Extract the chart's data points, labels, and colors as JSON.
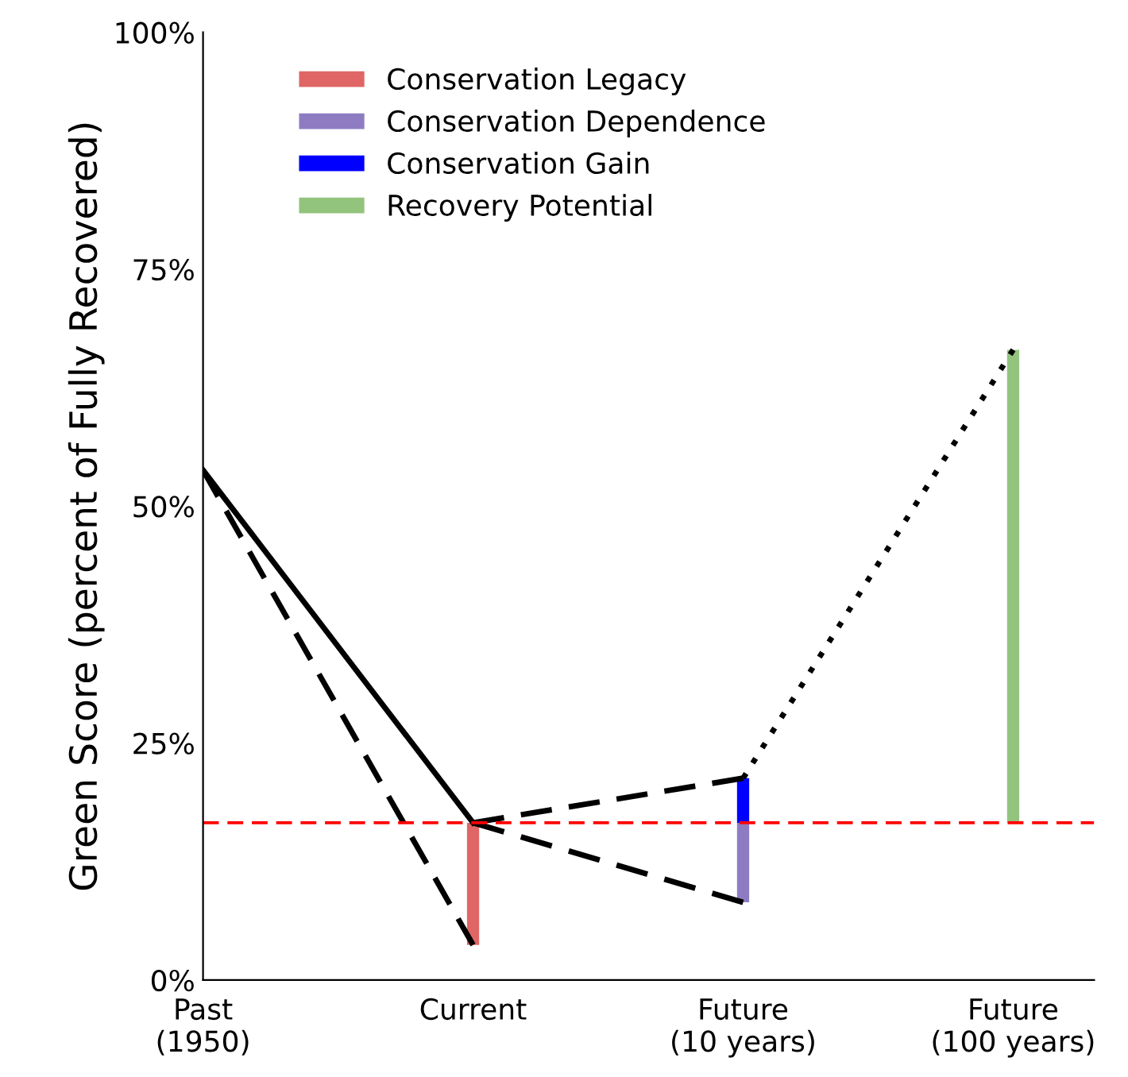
{
  "chart_data": {
    "type": "line",
    "ylabel": "Green Score (percent of Fully Recovered)",
    "categories": [
      "Past\n(1950)",
      "Current",
      "Future\n(10 years)",
      "Future\n(100 years)"
    ],
    "ylim": [
      0,
      100
    ],
    "yticks": [
      {
        "value": 0,
        "label": "0%"
      },
      {
        "value": 25,
        "label": "25%"
      },
      {
        "value": 50,
        "label": "50%"
      },
      {
        "value": 75,
        "label": "75%"
      },
      {
        "value": 100,
        "label": "100%"
      }
    ],
    "grid": false,
    "legend": "top left",
    "series": [
      {
        "color": "#000000",
        "line_style": "solid",
        "values": [
          53.8,
          16.6,
          null,
          null
        ]
      },
      {
        "color": "#000000",
        "line_style": "dashed",
        "values": [
          53.8,
          3.7,
          null,
          null
        ]
      },
      {
        "color": "#000000",
        "line_style": "dashed",
        "values": [
          null,
          16.6,
          21.3,
          null
        ]
      },
      {
        "color": "#000000",
        "line_style": "dashed",
        "values": [
          null,
          16.6,
          8.2,
          null
        ]
      },
      {
        "color": "#000000",
        "line_style": "dotted",
        "values": [
          null,
          null,
          21.3,
          66.5
        ]
      },
      {
        "type": "bar",
        "name": "Conservation Legacy",
        "color": "#e06666",
        "values": [
          null,
          12.9,
          null,
          null
        ],
        "base": [
          null,
          3.7,
          null,
          null
        ]
      },
      {
        "type": "bar",
        "name": "Conservation Dependence",
        "color": "#8e7cc3",
        "values": [
          null,
          null,
          8.4,
          null
        ],
        "base": [
          null,
          null,
          8.2,
          null
        ]
      },
      {
        "type": "bar",
        "name": "Conservation Gain",
        "color": "#0000ff",
        "values": [
          null,
          null,
          4.7,
          null
        ],
        "base": [
          null,
          null,
          16.6,
          null
        ]
      },
      {
        "type": "bar",
        "name": "Recovery Potential",
        "color": "#93c47d",
        "values": [
          null,
          null,
          null,
          49.9
        ],
        "base": [
          null,
          null,
          null,
          16.6
        ]
      }
    ],
    "ref_lines": [
      {
        "axis": "y",
        "value": 16.6,
        "color": "#ff0000",
        "line_style": "dashed"
      }
    ]
  }
}
